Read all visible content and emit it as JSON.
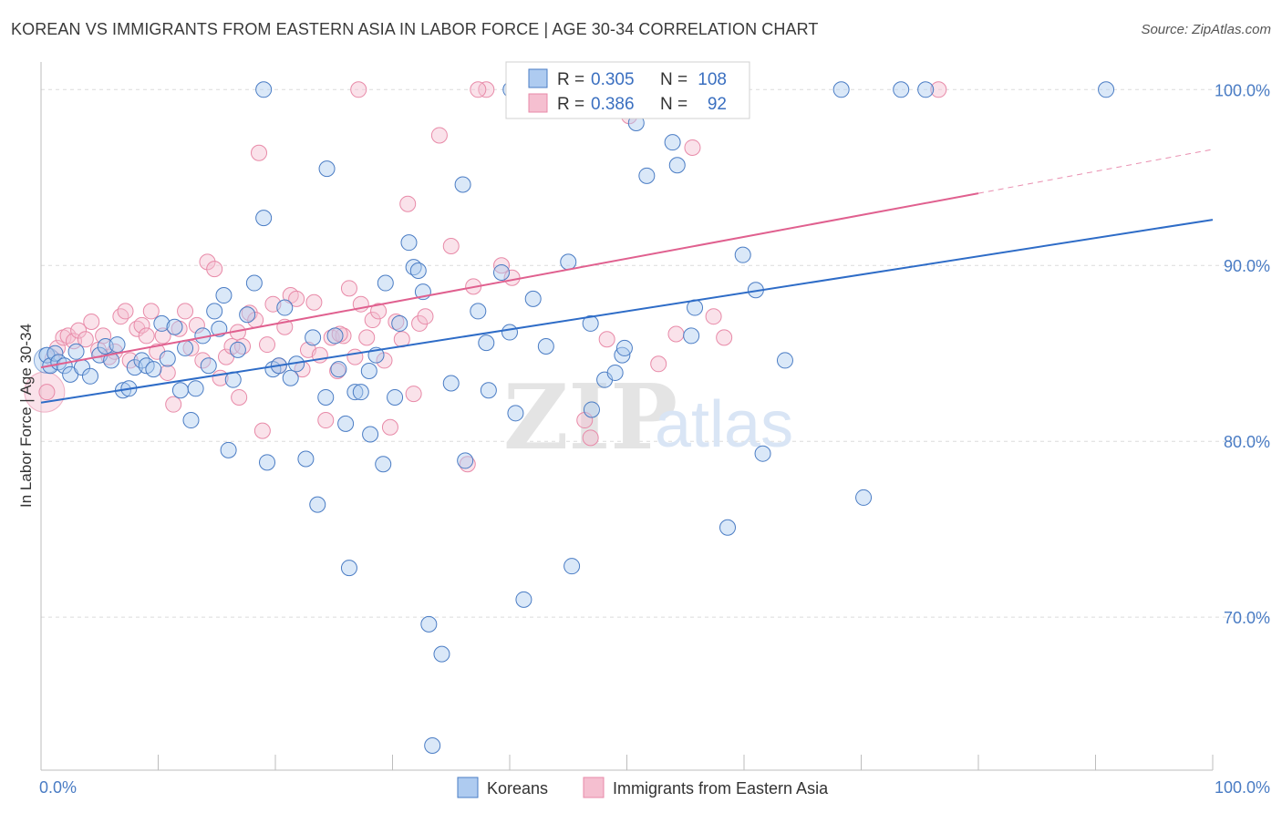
{
  "header": {
    "title": "KOREAN VS IMMIGRANTS FROM EASTERN ASIA IN LABOR FORCE | AGE 30-34 CORRELATION CHART",
    "source": "Source: ZipAtlas.com"
  },
  "watermark": {
    "zip": "ZIP",
    "atlas": "atlas"
  },
  "colors": {
    "blue": "#4a7cc4",
    "blue_fill": "#aecbf0",
    "blue_line": "#2e6cc7",
    "pink_fill": "#f5bfd0",
    "pink_stroke": "#e88aa8",
    "pink_line": "#e0608f",
    "grid": "#dcdcdc"
  },
  "stats_box": {
    "rows": [
      {
        "r_label": "R =",
        "r_value": "0.305",
        "n_label": "N =",
        "n_value": "108"
      },
      {
        "r_label": "R =",
        "r_value": "0.386",
        "n_label": "N =",
        "n_value": "92"
      }
    ]
  },
  "chart_data": {
    "type": "scatter",
    "title": "KOREAN VS IMMIGRANTS FROM EASTERN ASIA IN LABOR FORCE | AGE 30-34 CORRELATION CHART",
    "xlabel": "",
    "ylabel": "In Labor Force | Age 30-34",
    "xlim": [
      0,
      100
    ],
    "ylim": [
      61.3,
      101.0
    ],
    "x_tick_labels": [
      "0.0%",
      "100.0%"
    ],
    "y_ticks": [
      70,
      80,
      90,
      100
    ],
    "y_tick_labels": [
      "70.0%",
      "80.0%",
      "90.0%",
      "100.0%"
    ],
    "grid": true,
    "legend_position": "bottom-center",
    "legend": [
      "Koreans",
      "Immigrants from Eastern Asia"
    ],
    "series": [
      {
        "name": "Koreans",
        "color": "#4a7cc4",
        "r": 0.305,
        "n": 108,
        "trend": {
          "x0": 0.0,
          "y0": 82.2,
          "x1": 100.0,
          "y1": 92.6
        },
        "points": [
          [
            0.5,
            84.9
          ],
          [
            0.8,
            84.3
          ],
          [
            1.2,
            85.0
          ],
          [
            1.5,
            84.5
          ],
          [
            2.0,
            84.3
          ],
          [
            2.5,
            83.8
          ],
          [
            3.0,
            85.1
          ],
          [
            3.5,
            84.2
          ],
          [
            4.2,
            83.7
          ],
          [
            5.0,
            84.9
          ],
          [
            5.5,
            85.4
          ],
          [
            6.0,
            84.6
          ],
          [
            6.5,
            85.5
          ],
          [
            7.0,
            82.9
          ],
          [
            7.5,
            83.0
          ],
          [
            8.0,
            84.2
          ],
          [
            8.6,
            84.6
          ],
          [
            9.0,
            84.3
          ],
          [
            9.6,
            84.1
          ],
          [
            10.3,
            86.7
          ],
          [
            10.8,
            84.7
          ],
          [
            11.4,
            86.5
          ],
          [
            11.9,
            82.9
          ],
          [
            12.3,
            85.3
          ],
          [
            12.8,
            81.2
          ],
          [
            13.2,
            83.0
          ],
          [
            13.8,
            86.0
          ],
          [
            14.3,
            84.3
          ],
          [
            14.8,
            87.4
          ],
          [
            15.2,
            86.4
          ],
          [
            15.6,
            88.3
          ],
          [
            16.0,
            79.5
          ],
          [
            16.4,
            83.5
          ],
          [
            16.8,
            85.2
          ],
          [
            17.6,
            87.2
          ],
          [
            18.2,
            89.0
          ],
          [
            19.0,
            92.7
          ],
          [
            19.3,
            78.8
          ],
          [
            19.8,
            84.1
          ],
          [
            20.3,
            84.3
          ],
          [
            20.8,
            87.6
          ],
          [
            21.3,
            83.6
          ],
          [
            21.8,
            84.4
          ],
          [
            22.6,
            79.0
          ],
          [
            23.2,
            85.9
          ],
          [
            23.6,
            76.4
          ],
          [
            24.3,
            82.5
          ],
          [
            24.4,
            95.5
          ],
          [
            25.1,
            86.0
          ],
          [
            25.4,
            84.1
          ],
          [
            26.0,
            81.0
          ],
          [
            26.3,
            72.8
          ],
          [
            26.8,
            82.8
          ],
          [
            27.3,
            82.8
          ],
          [
            28.0,
            84.0
          ],
          [
            28.1,
            80.4
          ],
          [
            28.6,
            84.9
          ],
          [
            29.2,
            78.7
          ],
          [
            29.4,
            89.0
          ],
          [
            30.2,
            82.5
          ],
          [
            30.6,
            86.7
          ],
          [
            31.4,
            91.3
          ],
          [
            31.8,
            89.9
          ],
          [
            32.2,
            89.7
          ],
          [
            32.6,
            88.5
          ],
          [
            33.1,
            69.6
          ],
          [
            33.4,
            62.7
          ],
          [
            34.2,
            67.9
          ],
          [
            35.0,
            83.3
          ],
          [
            36.0,
            94.6
          ],
          [
            36.2,
            78.9
          ],
          [
            37.3,
            87.4
          ],
          [
            38.0,
            85.6
          ],
          [
            38.2,
            82.9
          ],
          [
            39.3,
            89.6
          ],
          [
            40.0,
            86.2
          ],
          [
            40.5,
            81.6
          ],
          [
            41.2,
            71.0
          ],
          [
            42.0,
            88.1
          ],
          [
            43.1,
            85.4
          ],
          [
            45.0,
            90.2
          ],
          [
            45.3,
            72.9
          ],
          [
            46.9,
            86.7
          ],
          [
            47.0,
            81.8
          ],
          [
            48.1,
            83.5
          ],
          [
            49.0,
            83.9
          ],
          [
            49.6,
            84.9
          ],
          [
            49.8,
            85.3
          ],
          [
            50.8,
            98.1
          ],
          [
            51.2,
            100.0
          ],
          [
            51.7,
            95.1
          ],
          [
            53.9,
            97.0
          ],
          [
            54.3,
            95.7
          ],
          [
            55.5,
            86.0
          ],
          [
            55.8,
            87.6
          ],
          [
            58.6,
            75.1
          ],
          [
            59.9,
            90.6
          ],
          [
            61.0,
            88.6
          ],
          [
            61.6,
            79.3
          ],
          [
            63.5,
            84.6
          ],
          [
            68.3,
            100.0
          ],
          [
            70.2,
            76.8
          ],
          [
            73.4,
            100.0
          ],
          [
            75.5,
            100.0
          ],
          [
            90.9,
            100.0
          ],
          [
            40.1,
            100.0
          ],
          [
            19.0,
            100.0
          ]
        ]
      },
      {
        "name": "Immigrants from Eastern Asia",
        "color": "#e88aa8",
        "r": 0.386,
        "n": 92,
        "trend": {
          "x0": 0.0,
          "y0": 84.2,
          "x1": 80.0,
          "y1": 94.1,
          "dash_to_x": 100.0,
          "dash_to_y": 96.6
        },
        "points": [
          [
            0.5,
            82.8
          ],
          [
            1.0,
            84.7
          ],
          [
            1.4,
            85.3
          ],
          [
            1.9,
            85.9
          ],
          [
            2.3,
            86.0
          ],
          [
            2.8,
            85.7
          ],
          [
            3.2,
            86.3
          ],
          [
            3.8,
            85.8
          ],
          [
            4.3,
            86.8
          ],
          [
            4.9,
            85.2
          ],
          [
            5.3,
            86.0
          ],
          [
            5.8,
            84.8
          ],
          [
            6.3,
            85.1
          ],
          [
            6.8,
            87.1
          ],
          [
            7.2,
            87.4
          ],
          [
            7.6,
            84.6
          ],
          [
            8.2,
            86.4
          ],
          [
            8.6,
            86.6
          ],
          [
            9.0,
            86.0
          ],
          [
            9.4,
            87.4
          ],
          [
            9.9,
            85.1
          ],
          [
            10.4,
            86.0
          ],
          [
            10.8,
            83.9
          ],
          [
            11.3,
            82.1
          ],
          [
            11.8,
            86.4
          ],
          [
            12.3,
            87.4
          ],
          [
            12.8,
            85.3
          ],
          [
            13.3,
            86.6
          ],
          [
            13.8,
            84.6
          ],
          [
            14.2,
            90.2
          ],
          [
            14.8,
            89.8
          ],
          [
            15.3,
            83.6
          ],
          [
            15.8,
            84.8
          ],
          [
            16.3,
            85.4
          ],
          [
            16.8,
            86.2
          ],
          [
            17.2,
            85.4
          ],
          [
            17.8,
            87.3
          ],
          [
            18.3,
            86.9
          ],
          [
            18.6,
            96.4
          ],
          [
            18.9,
            80.6
          ],
          [
            19.3,
            85.5
          ],
          [
            19.8,
            87.8
          ],
          [
            20.3,
            84.3
          ],
          [
            20.8,
            86.5
          ],
          [
            21.3,
            88.3
          ],
          [
            21.8,
            88.1
          ],
          [
            22.3,
            84.1
          ],
          [
            22.8,
            85.2
          ],
          [
            23.3,
            87.9
          ],
          [
            23.8,
            84.9
          ],
          [
            24.3,
            81.2
          ],
          [
            24.8,
            85.9
          ],
          [
            25.3,
            84.0
          ],
          [
            25.8,
            86.0
          ],
          [
            26.3,
            88.7
          ],
          [
            26.8,
            84.8
          ],
          [
            27.3,
            87.8
          ],
          [
            27.8,
            85.9
          ],
          [
            28.3,
            86.9
          ],
          [
            28.8,
            87.4
          ],
          [
            29.3,
            84.6
          ],
          [
            29.8,
            80.8
          ],
          [
            30.3,
            86.8
          ],
          [
            30.8,
            85.8
          ],
          [
            31.3,
            93.5
          ],
          [
            31.8,
            82.7
          ],
          [
            32.3,
            86.7
          ],
          [
            32.8,
            87.1
          ],
          [
            34.0,
            97.4
          ],
          [
            35.0,
            91.1
          ],
          [
            36.4,
            78.7
          ],
          [
            36.9,
            88.8
          ],
          [
            38.0,
            100.0
          ],
          [
            39.3,
            90.0
          ],
          [
            40.2,
            89.3
          ],
          [
            42.4,
            100.0
          ],
          [
            46.4,
            81.2
          ],
          [
            46.9,
            80.2
          ],
          [
            47.6,
            100.0
          ],
          [
            48.3,
            85.8
          ],
          [
            50.2,
            98.5
          ],
          [
            51.7,
            100.0
          ],
          [
            52.7,
            84.4
          ],
          [
            54.2,
            86.1
          ],
          [
            55.6,
            96.7
          ],
          [
            57.4,
            87.1
          ],
          [
            58.3,
            85.9
          ],
          [
            76.6,
            100.0
          ],
          [
            27.1,
            100.0
          ],
          [
            37.3,
            100.0
          ],
          [
            25.5,
            86.1
          ],
          [
            16.9,
            82.5
          ]
        ]
      }
    ]
  }
}
